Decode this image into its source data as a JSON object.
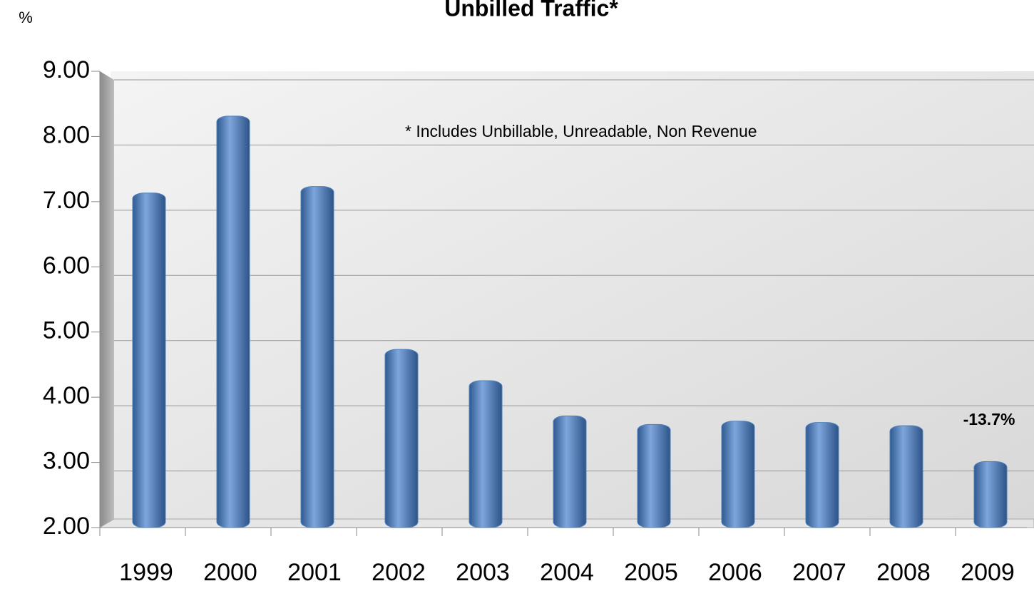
{
  "chart_data": {
    "type": "bar",
    "title": "Unbilled Traffic*",
    "y_label": "%",
    "annotations": [
      "* Includes Unbillable, Unreadable, Non Revenue",
      "-13.7%"
    ],
    "categories": [
      "1999",
      "2000",
      "2001",
      "2002",
      "2003",
      "2004",
      "2005",
      "2006",
      "2007",
      "2008",
      "2009"
    ],
    "values": [
      7.22,
      8.4,
      7.32,
      4.82,
      4.34,
      3.8,
      3.67,
      3.72,
      3.7,
      3.65,
      3.1
    ],
    "color": "#4f81bd",
    "ylim": [
      2,
      9
    ],
    "yticks": [
      {
        "value": 2,
        "label": "2.00"
      },
      {
        "value": 3,
        "label": "3.00"
      },
      {
        "value": 4,
        "label": "4.00"
      },
      {
        "value": 5,
        "label": "5.00"
      },
      {
        "value": 6,
        "label": "6.00"
      },
      {
        "value": 7,
        "label": "7.00"
      },
      {
        "value": 8,
        "label": "8.00"
      },
      {
        "value": 9,
        "label": "9.00"
      }
    ],
    "grid": true
  }
}
